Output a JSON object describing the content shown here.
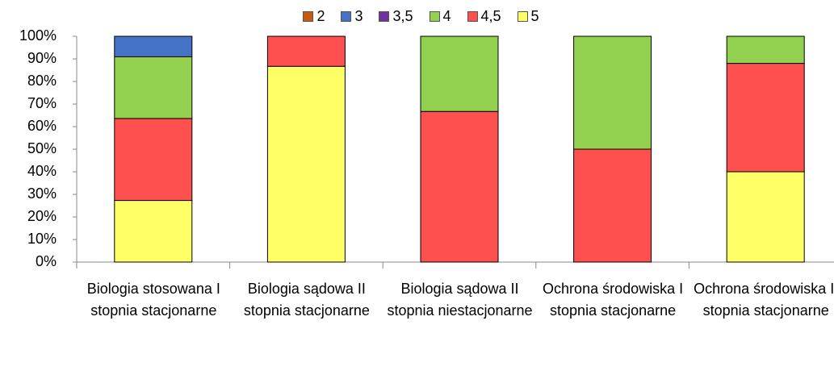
{
  "chart_data": {
    "type": "stacked_bar",
    "categories": [
      "Biologia stosowana I stopnia stacjonarne",
      "Biologia sądowa II stopnia stacjonarne",
      "Biologia sądowa II stopnia niestacjonarne",
      "Ochrona środowiska I stopnia stacjonarne",
      "Ochrona środowiska II stopnia stacjonarne"
    ],
    "series": [
      {
        "name": "2",
        "color": "#c55a11",
        "values": [
          0,
          0,
          0,
          0,
          0
        ]
      },
      {
        "name": "3",
        "color": "#4472c4",
        "values": [
          9.1,
          0,
          0,
          0,
          0
        ]
      },
      {
        "name": "3,5",
        "color": "#7030a0",
        "values": [
          0,
          0,
          0,
          0,
          0
        ]
      },
      {
        "name": "4",
        "color": "#92d050",
        "values": [
          27.3,
          0,
          33.3,
          50,
          12
        ]
      },
      {
        "name": "4,5",
        "color": "#ff5050",
        "values": [
          36.3,
          13.3,
          66.7,
          50,
          48
        ]
      },
      {
        "name": "5",
        "color": "#ffff66",
        "values": [
          27.3,
          86.7,
          0,
          0,
          40
        ]
      }
    ],
    "ylim": [
      0,
      100
    ],
    "yticks": [
      {
        "value": 0,
        "label": "0%"
      },
      {
        "value": 10,
        "label": "10%"
      },
      {
        "value": 20,
        "label": "20%"
      },
      {
        "value": 30,
        "label": "30%"
      },
      {
        "value": 40,
        "label": "40%"
      },
      {
        "value": 50,
        "label": "50%"
      },
      {
        "value": 60,
        "label": "60%"
      },
      {
        "value": 70,
        "label": "70%"
      },
      {
        "value": 80,
        "label": "80%"
      },
      {
        "value": 90,
        "label": "90%"
      },
      {
        "value": 100,
        "label": "100%"
      }
    ],
    "legend": "top"
  }
}
